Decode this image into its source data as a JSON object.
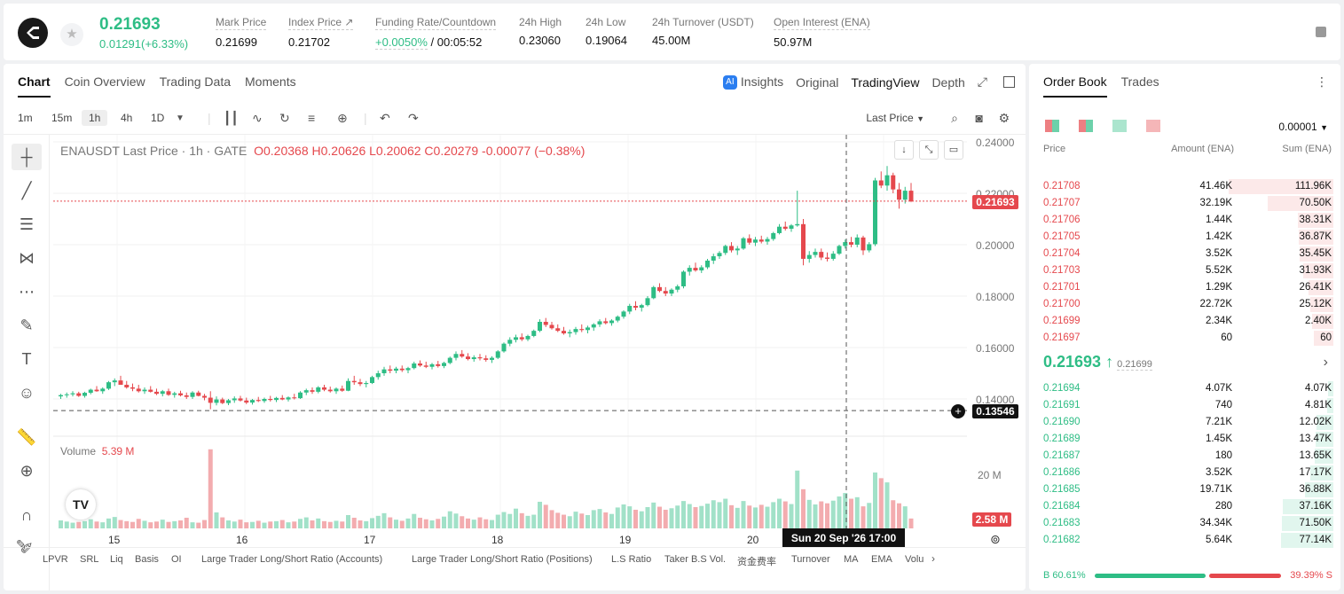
{
  "header": {
    "symbol_icon": "ena-logo",
    "price": "0.21693",
    "change": "0.01291(+6.33%)",
    "stats": [
      {
        "label": "Mark Price",
        "value": "0.21699"
      },
      {
        "label": "Index Price ↗",
        "value": "0.21702"
      },
      {
        "label": "Funding Rate/Countdown",
        "value": "+0.0050%",
        "value2": " / 00:05:52"
      },
      {
        "label": "24h High",
        "value": "0.23060"
      },
      {
        "label": "24h Low",
        "value": "0.19064"
      },
      {
        "label": "24h Turnover (USDT)",
        "value": "45.00M"
      },
      {
        "label": "Open Interest (ENA)",
        "value": "50.97M"
      }
    ]
  },
  "chart_tabs": [
    "Chart",
    "Coin Overview",
    "Trading Data",
    "Moments"
  ],
  "view_tabs": {
    "insights": "Insights",
    "original": "Original",
    "tradingview": "TradingView",
    "depth": "Depth",
    "ai": "AI"
  },
  "timeframes": [
    "1m",
    "15m",
    "1h",
    "4h",
    "1D"
  ],
  "price_source": "Last Price",
  "legend": {
    "title": "ENAUSDT Last Price · 1h · GATE",
    "o_label": "O",
    "o": "0.20368",
    "h_label": "H",
    "h": "0.20626",
    "l_label": "L",
    "l": "0.20062",
    "c_label": "C",
    "c": "0.20279",
    "chg": "-0.00077 (−0.38%)"
  },
  "volume_legend": {
    "label": "Volume",
    "value": "5.39 M"
  },
  "price_axis": [
    "0.24000",
    "0.22000",
    "0.20000",
    "0.18000",
    "0.16000",
    "0.14000"
  ],
  "volume_axis": [
    "20 M"
  ],
  "price_tags": {
    "last": "0.21693",
    "cross": "0.13546",
    "volume": "2.58 M"
  },
  "time_axis": [
    "15",
    "16",
    "17",
    "18",
    "19",
    "20"
  ],
  "crosshair_time": "Sun 20 Sep '26   17:00",
  "tv_logo": "TV",
  "indicators": [
    "LPVR",
    "SRL",
    "Liq",
    "Basis",
    "OI",
    "Large Trader Long/Short Ratio (Accounts)",
    "Large Trader Long/Short Ratio (Positions)",
    "L.S Ratio",
    "Taker B.S Vol.",
    "资金费率",
    "Turnover",
    "MA",
    "EMA",
    "Volu"
  ],
  "colors": {
    "up": "#2ebd85",
    "down": "#e5484d"
  },
  "chart_data": {
    "type": "candlestick",
    "interval": "1h",
    "y_range": [
      0.13,
      0.245
    ],
    "ohlc": [
      [
        0.141,
        0.142,
        0.14,
        0.1415
      ],
      [
        0.1415,
        0.1425,
        0.1405,
        0.1418
      ],
      [
        0.1418,
        0.143,
        0.141,
        0.1422
      ],
      [
        0.1422,
        0.1428,
        0.1408,
        0.1412
      ],
      [
        0.1412,
        0.1428,
        0.1405,
        0.1424
      ],
      [
        0.1424,
        0.144,
        0.1418,
        0.1436
      ],
      [
        0.1436,
        0.145,
        0.1428,
        0.143
      ],
      [
        0.143,
        0.1445,
        0.142,
        0.144
      ],
      [
        0.144,
        0.147,
        0.1435,
        0.1465
      ],
      [
        0.1465,
        0.148,
        0.145,
        0.1472
      ],
      [
        0.1472,
        0.149,
        0.146,
        0.1455
      ],
      [
        0.1455,
        0.147,
        0.144,
        0.1445
      ],
      [
        0.1445,
        0.146,
        0.143,
        0.144
      ],
      [
        0.144,
        0.1455,
        0.1425,
        0.143
      ],
      [
        0.143,
        0.1445,
        0.142,
        0.1436
      ],
      [
        0.1436,
        0.145,
        0.1425,
        0.1428
      ],
      [
        0.1428,
        0.144,
        0.1415,
        0.142
      ],
      [
        0.142,
        0.1435,
        0.141,
        0.143
      ],
      [
        0.143,
        0.144,
        0.1412,
        0.1416
      ],
      [
        0.1416,
        0.1428,
        0.1405,
        0.1422
      ],
      [
        0.1422,
        0.1432,
        0.141,
        0.1414
      ],
      [
        0.1414,
        0.1425,
        0.14,
        0.1408
      ],
      [
        0.1408,
        0.143,
        0.14,
        0.1425
      ],
      [
        0.1425,
        0.1432,
        0.141,
        0.1412
      ],
      [
        0.1412,
        0.142,
        0.1395,
        0.1405
      ],
      [
        0.1405,
        0.143,
        0.136,
        0.1385
      ],
      [
        0.1385,
        0.141,
        0.1375,
        0.1398
      ],
      [
        0.1398,
        0.1405,
        0.138,
        0.1384
      ],
      [
        0.1384,
        0.14,
        0.1376,
        0.1395
      ],
      [
        0.1395,
        0.141,
        0.1385,
        0.1402
      ],
      [
        0.1402,
        0.1412,
        0.139,
        0.1394
      ],
      [
        0.1394,
        0.1405,
        0.138,
        0.1386
      ],
      [
        0.1386,
        0.14,
        0.1378,
        0.1396
      ],
      [
        0.1396,
        0.1408,
        0.1388,
        0.1392
      ],
      [
        0.1392,
        0.1405,
        0.1385,
        0.14
      ],
      [
        0.14,
        0.1412,
        0.139,
        0.1396
      ],
      [
        0.1396,
        0.1408,
        0.1388,
        0.1404
      ],
      [
        0.1404,
        0.1415,
        0.1395,
        0.1398
      ],
      [
        0.1398,
        0.141,
        0.139,
        0.1406
      ],
      [
        0.1406,
        0.142,
        0.1398,
        0.1403
      ],
      [
        0.1403,
        0.143,
        0.14,
        0.1425
      ],
      [
        0.1425,
        0.144,
        0.1415,
        0.1434
      ],
      [
        0.1434,
        0.1445,
        0.142,
        0.1428
      ],
      [
        0.1428,
        0.145,
        0.1422,
        0.1445
      ],
      [
        0.1445,
        0.1455,
        0.143,
        0.1436
      ],
      [
        0.1436,
        0.1448,
        0.1425,
        0.143
      ],
      [
        0.143,
        0.1445,
        0.142,
        0.144
      ],
      [
        0.144,
        0.1452,
        0.1428,
        0.1432
      ],
      [
        0.1432,
        0.148,
        0.143,
        0.147
      ],
      [
        0.147,
        0.149,
        0.1455,
        0.1465
      ],
      [
        0.1465,
        0.1478,
        0.145,
        0.1458
      ],
      [
        0.1458,
        0.147,
        0.1445,
        0.1462
      ],
      [
        0.1462,
        0.149,
        0.1458,
        0.1485
      ],
      [
        0.1485,
        0.151,
        0.1475,
        0.15
      ],
      [
        0.15,
        0.1525,
        0.149,
        0.1515
      ],
      [
        0.1515,
        0.153,
        0.15,
        0.151
      ],
      [
        0.151,
        0.1525,
        0.15,
        0.1518
      ],
      [
        0.1518,
        0.153,
        0.1505,
        0.1512
      ],
      [
        0.1512,
        0.1525,
        0.15,
        0.152
      ],
      [
        0.152,
        0.1545,
        0.1515,
        0.1538
      ],
      [
        0.1538,
        0.155,
        0.1525,
        0.153
      ],
      [
        0.153,
        0.1545,
        0.152,
        0.1525
      ],
      [
        0.1525,
        0.154,
        0.1515,
        0.1535
      ],
      [
        0.1535,
        0.1548,
        0.1522,
        0.1528
      ],
      [
        0.1528,
        0.1545,
        0.152,
        0.154
      ],
      [
        0.154,
        0.1565,
        0.1535,
        0.156
      ],
      [
        0.156,
        0.1585,
        0.155,
        0.1575
      ],
      [
        0.1575,
        0.159,
        0.156,
        0.1565
      ],
      [
        0.1565,
        0.1578,
        0.155,
        0.1555
      ],
      [
        0.1555,
        0.157,
        0.1545,
        0.1562
      ],
      [
        0.1562,
        0.1575,
        0.155,
        0.1558
      ],
      [
        0.1558,
        0.157,
        0.1545,
        0.1552
      ],
      [
        0.1552,
        0.1566,
        0.154,
        0.156
      ],
      [
        0.156,
        0.159,
        0.1555,
        0.1585
      ],
      [
        0.1585,
        0.162,
        0.158,
        0.1615
      ],
      [
        0.1615,
        0.164,
        0.1605,
        0.163
      ],
      [
        0.163,
        0.165,
        0.162,
        0.164
      ],
      [
        0.164,
        0.1655,
        0.1625,
        0.1632
      ],
      [
        0.1632,
        0.165,
        0.1625,
        0.1645
      ],
      [
        0.1645,
        0.167,
        0.164,
        0.1665
      ],
      [
        0.1665,
        0.171,
        0.166,
        0.17
      ],
      [
        0.17,
        0.1715,
        0.168,
        0.1688
      ],
      [
        0.1688,
        0.17,
        0.167,
        0.1675
      ],
      [
        0.1675,
        0.169,
        0.166,
        0.1665
      ],
      [
        0.1665,
        0.168,
        0.165,
        0.1655
      ],
      [
        0.1655,
        0.167,
        0.164,
        0.166
      ],
      [
        0.166,
        0.168,
        0.165,
        0.1672
      ],
      [
        0.1672,
        0.169,
        0.166,
        0.1668
      ],
      [
        0.1668,
        0.1685,
        0.1655,
        0.1678
      ],
      [
        0.1678,
        0.1695,
        0.1665,
        0.169
      ],
      [
        0.169,
        0.171,
        0.168,
        0.1702
      ],
      [
        0.1702,
        0.1715,
        0.169,
        0.1695
      ],
      [
        0.1695,
        0.171,
        0.1685,
        0.1705
      ],
      [
        0.1705,
        0.1725,
        0.1698,
        0.172
      ],
      [
        0.172,
        0.1745,
        0.1712,
        0.174
      ],
      [
        0.174,
        0.177,
        0.173,
        0.1762
      ],
      [
        0.1762,
        0.178,
        0.1745,
        0.1755
      ],
      [
        0.1755,
        0.177,
        0.174,
        0.1765
      ],
      [
        0.1765,
        0.18,
        0.176,
        0.1792
      ],
      [
        0.1792,
        0.184,
        0.1788,
        0.1835
      ],
      [
        0.1835,
        0.185,
        0.1815,
        0.182
      ],
      [
        0.182,
        0.1835,
        0.18,
        0.181
      ],
      [
        0.181,
        0.183,
        0.18,
        0.1825
      ],
      [
        0.1825,
        0.1845,
        0.1815,
        0.1838
      ],
      [
        0.1838,
        0.19,
        0.183,
        0.1895
      ],
      [
        0.1895,
        0.192,
        0.188,
        0.191
      ],
      [
        0.191,
        0.193,
        0.1895,
        0.19
      ],
      [
        0.19,
        0.192,
        0.189,
        0.1912
      ],
      [
        0.1912,
        0.1945,
        0.1905,
        0.1938
      ],
      [
        0.1938,
        0.1965,
        0.1925,
        0.1955
      ],
      [
        0.1955,
        0.1975,
        0.1945,
        0.1968
      ],
      [
        0.1968,
        0.2,
        0.196,
        0.1995
      ],
      [
        0.1995,
        0.201,
        0.197,
        0.1978
      ],
      [
        0.1978,
        0.1995,
        0.196,
        0.1985
      ],
      [
        0.1985,
        0.203,
        0.198,
        0.2025
      ],
      [
        0.2025,
        0.204,
        0.2,
        0.2008
      ],
      [
        0.2008,
        0.203,
        0.1995,
        0.202
      ],
      [
        0.202,
        0.2035,
        0.2005,
        0.2012
      ],
      [
        0.2012,
        0.203,
        0.2,
        0.2022
      ],
      [
        0.2022,
        0.205,
        0.2015,
        0.2045
      ],
      [
        0.2045,
        0.208,
        0.204,
        0.207
      ],
      [
        0.207,
        0.209,
        0.2055,
        0.2062
      ],
      [
        0.2062,
        0.208,
        0.205,
        0.2075
      ],
      [
        0.2075,
        0.221,
        0.207,
        0.208
      ],
      [
        0.208,
        0.21,
        0.192,
        0.1945
      ],
      [
        0.1945,
        0.1975,
        0.193,
        0.196
      ],
      [
        0.196,
        0.1985,
        0.195,
        0.1972
      ],
      [
        0.1972,
        0.1985,
        0.194,
        0.195
      ],
      [
        0.195,
        0.197,
        0.1935,
        0.1945
      ],
      [
        0.1945,
        0.1975,
        0.1938,
        0.1965
      ],
      [
        0.1965,
        0.2,
        0.196,
        0.1995
      ],
      [
        0.1995,
        0.202,
        0.1985,
        0.201
      ],
      [
        0.201,
        0.203,
        0.199,
        0.2
      ],
      [
        0.2,
        0.204,
        0.199,
        0.2028
      ],
      [
        0.2028,
        0.2035,
        0.196,
        0.1978
      ],
      [
        0.1978,
        0.201,
        0.197,
        0.2002
      ],
      [
        0.2002,
        0.226,
        0.1995,
        0.225
      ],
      [
        0.225,
        0.2285,
        0.222,
        0.223
      ],
      [
        0.223,
        0.2306,
        0.221,
        0.227
      ],
      [
        0.227,
        0.228,
        0.22,
        0.2215
      ],
      [
        0.2215,
        0.224,
        0.214,
        0.2175
      ],
      [
        0.2175,
        0.2225,
        0.216,
        0.221
      ],
      [
        0.221,
        0.224,
        0.2165,
        0.2169
      ]
    ],
    "volume_m": [
      2.1,
      1.8,
      1.5,
      1.7,
      1.9,
      2.4,
      1.8,
      1.6,
      2.6,
      3.0,
      2.2,
      1.9,
      1.7,
      2.5,
      2.0,
      1.6,
      1.8,
      2.3,
      1.7,
      1.9,
      2.1,
      2.8,
      1.6,
      1.5,
      2.2,
      20.8,
      4.2,
      2.9,
      2.1,
      1.8,
      2.3,
      1.6,
      1.7,
      2.0,
      1.5,
      1.8,
      1.9,
      2.2,
      1.6,
      1.8,
      2.5,
      2.9,
      2.1,
      2.6,
      1.9,
      1.7,
      2.0,
      1.8,
      3.5,
      2.8,
      2.1,
      1.9,
      2.7,
      3.3,
      4.0,
      2.9,
      2.3,
      2.0,
      2.6,
      3.8,
      2.8,
      2.4,
      2.1,
      2.5,
      3.1,
      4.5,
      3.9,
      3.2,
      2.6,
      2.3,
      2.9,
      2.4,
      2.2,
      3.6,
      4.3,
      3.8,
      5.2,
      4.0,
      3.3,
      3.6,
      7.0,
      6.2,
      4.8,
      4.1,
      3.6,
      3.2,
      4.4,
      3.9,
      3.5,
      4.8,
      5.1,
      4.2,
      3.8,
      5.5,
      6.3,
      5.8,
      4.9,
      4.5,
      5.6,
      6.8,
      5.7,
      4.9,
      5.3,
      6.0,
      7.2,
      6.4,
      5.6,
      5.9,
      6.5,
      7.4,
      6.9,
      7.8,
      6.1,
      5.4,
      7.2,
      6.0,
      5.5,
      6.2,
      5.7,
      6.9,
      7.8,
      7.1,
      6.4,
      15.2,
      10.3,
      7.5,
      6.3,
      7.1,
      6.6,
      7.3,
      8.4,
      9.3,
      7.8,
      8.2,
      5.8,
      6.7,
      14.7,
      13.2,
      12.1,
      7.4,
      6.6,
      5.8,
      2.6
    ]
  },
  "orderbook": {
    "tabs": [
      "Order Book",
      "Trades"
    ],
    "precision": "0.00001",
    "headers": {
      "price": "Price",
      "amount": "Amount (ENA)",
      "sum": "Sum (ENA)"
    },
    "asks": [
      {
        "price": "0.21708",
        "amount": "41.46K",
        "sum": "111.96K",
        "depth": 1.0
      },
      {
        "price": "0.21707",
        "amount": "32.19K",
        "sum": "70.50K",
        "depth": 0.63
      },
      {
        "price": "0.21706",
        "amount": "1.44K",
        "sum": "38.31K",
        "depth": 0.34
      },
      {
        "price": "0.21705",
        "amount": "1.42K",
        "sum": "36.87K",
        "depth": 0.33
      },
      {
        "price": "0.21704",
        "amount": "3.52K",
        "sum": "35.45K",
        "depth": 0.32
      },
      {
        "price": "0.21703",
        "amount": "5.52K",
        "sum": "31.93K",
        "depth": 0.29
      },
      {
        "price": "0.21701",
        "amount": "1.29K",
        "sum": "26.41K",
        "depth": 0.24
      },
      {
        "price": "0.21700",
        "amount": "22.72K",
        "sum": "25.12K",
        "depth": 0.22
      },
      {
        "price": "0.21699",
        "amount": "2.34K",
        "sum": "2.40K",
        "depth": 0.2
      },
      {
        "price": "0.21697",
        "amount": "60",
        "sum": "60",
        "depth": 0.19
      }
    ],
    "mid_price": "0.21693 ↑",
    "mid_mark": "0.21699",
    "bids": [
      {
        "price": "0.21694",
        "amount": "4.07K",
        "sum": "4.07K",
        "depth": 0.05
      },
      {
        "price": "0.21691",
        "amount": "740",
        "sum": "4.81K",
        "depth": 0.06
      },
      {
        "price": "0.21690",
        "amount": "7.21K",
        "sum": "12.02K",
        "depth": 0.16
      },
      {
        "price": "0.21689",
        "amount": "1.45K",
        "sum": "13.47K",
        "depth": 0.17
      },
      {
        "price": "0.21687",
        "amount": "180",
        "sum": "13.65K",
        "depth": 0.18
      },
      {
        "price": "0.21686",
        "amount": "3.52K",
        "sum": "17.17K",
        "depth": 0.22
      },
      {
        "price": "0.21685",
        "amount": "19.71K",
        "sum": "36.88K",
        "depth": 0.27
      },
      {
        "price": "0.21684",
        "amount": "280",
        "sum": "37.16K",
        "depth": 0.48
      },
      {
        "price": "0.21683",
        "amount": "34.34K",
        "sum": "71.50K",
        "depth": 0.49
      },
      {
        "price": "0.21682",
        "amount": "5.64K",
        "sum": "77.14K",
        "depth": 0.5
      }
    ],
    "buy_ratio": "B 60.61%",
    "sell_ratio": "39.39% S",
    "buy_fraction": 0.6061
  }
}
